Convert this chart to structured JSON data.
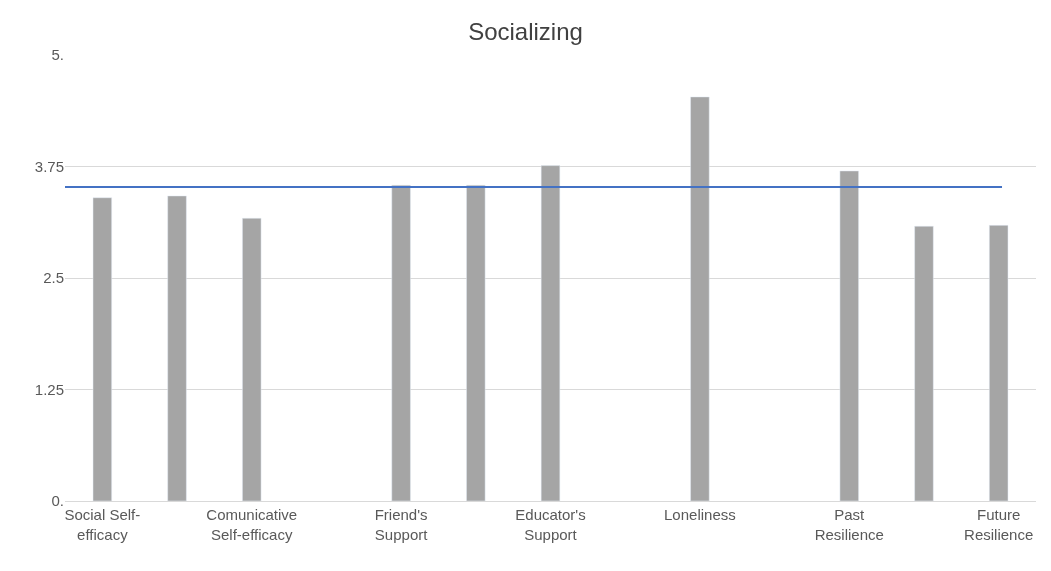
{
  "chart_data": {
    "type": "bar",
    "title": "Socializing",
    "categories": [
      "Social Self-efficacy",
      null,
      "Comunicative Self-efficacy",
      null,
      "Friend's Support",
      null,
      "Educator's Support",
      null,
      "Loneliness",
      null,
      "Past Resilience",
      null,
      "Future Resilience"
    ],
    "values": [
      3.4,
      3.42,
      3.17,
      null,
      3.54,
      3.54,
      3.76,
      null,
      4.53,
      null,
      3.7,
      3.08,
      3.09
    ],
    "color": "#a5a5a5",
    "ylim": [
      0,
      5
    ],
    "yticks": [
      {
        "value": 0,
        "label": "0."
      },
      1.25,
      2.5,
      3.75,
      {
        "value": 5,
        "label": "5."
      }
    ],
    "grid": "y",
    "ref_lines": [
      {
        "axis": "y",
        "value": 3.52,
        "color": "#4472c4",
        "line_style": "solid"
      }
    ]
  }
}
